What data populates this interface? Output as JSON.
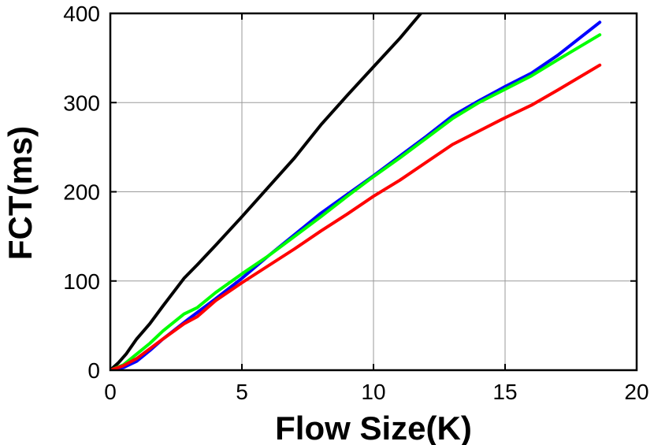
{
  "chart_data": {
    "type": "line",
    "title": "",
    "xlabel": "Flow Size(K)",
    "ylabel": "FCT(ms)",
    "xlim": [
      0,
      20
    ],
    "ylim": [
      0,
      400
    ],
    "xticks": [
      0,
      5,
      10,
      15,
      20
    ],
    "yticks": [
      0,
      100,
      200,
      300,
      400
    ],
    "grid": true,
    "legend": "none",
    "series": [
      {
        "color": "#000000",
        "x": [
          0,
          0.3,
          0.6,
          1.0,
          1.5,
          2.0,
          2.8,
          3.3,
          4.0,
          5.0,
          6.0,
          7.0,
          8.0,
          9.0,
          10.0,
          11.0,
          11.8
        ],
        "y": [
          0,
          8,
          18,
          35,
          52,
          72,
          103,
          118,
          140,
          172,
          205,
          238,
          275,
          308,
          340,
          372,
          400
        ]
      },
      {
        "color": "#0000ff",
        "x": [
          0,
          0.5,
          1.0,
          1.5,
          2.0,
          3.0,
          4.0,
          5.0,
          6.0,
          7.0,
          8.0,
          9.0,
          10.0,
          11.0,
          12.0,
          13.0,
          14.0,
          15.0,
          16.0,
          17.0,
          18.6
        ],
        "y": [
          0,
          3,
          10,
          22,
          35,
          58,
          80,
          103,
          128,
          152,
          176,
          197,
          218,
          240,
          262,
          285,
          302,
          318,
          333,
          353,
          390
        ]
      },
      {
        "color": "#00ff00",
        "x": [
          0,
          0.5,
          1.0,
          1.5,
          2.0,
          2.8,
          3.3,
          4.0,
          5.0,
          6.0,
          7.0,
          8.0,
          9.0,
          10.0,
          11.0,
          12.0,
          13.0,
          14.0,
          15.0,
          16.0,
          17.0,
          18.6
        ],
        "y": [
          0,
          6,
          18,
          30,
          44,
          63,
          70,
          87,
          108,
          128,
          150,
          172,
          195,
          217,
          238,
          260,
          282,
          300,
          315,
          330,
          348,
          376
        ]
      },
      {
        "color": "#ff0000",
        "x": [
          0,
          0.5,
          1.0,
          1.5,
          2.0,
          2.8,
          3.3,
          4.0,
          5.0,
          6.0,
          7.0,
          8.0,
          9.0,
          10.0,
          11.0,
          12.0,
          13.0,
          14.0,
          15.0,
          16.0,
          17.0,
          18.6
        ],
        "y": [
          0,
          5,
          13,
          24,
          35,
          52,
          60,
          78,
          98,
          117,
          136,
          156,
          175,
          195,
          213,
          233,
          253,
          268,
          283,
          297,
          314,
          342
        ]
      }
    ]
  }
}
